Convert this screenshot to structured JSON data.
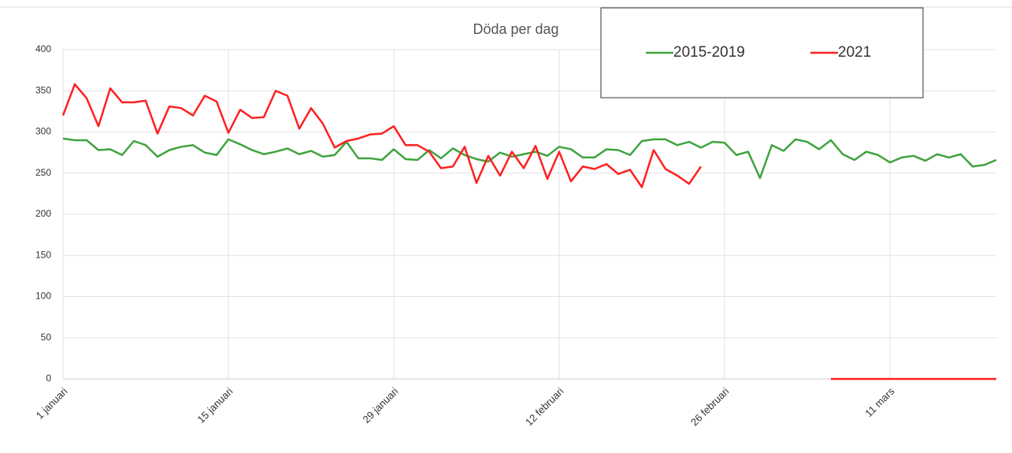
{
  "chart_data": {
    "type": "line",
    "title": "Döda per dag",
    "categories": [
      "1 januari",
      null,
      null,
      null,
      null,
      null,
      null,
      null,
      null,
      null,
      null,
      null,
      null,
      null,
      "15 januari",
      null,
      null,
      null,
      null,
      null,
      null,
      null,
      null,
      null,
      null,
      null,
      null,
      null,
      "29 januari",
      null,
      null,
      null,
      null,
      null,
      null,
      null,
      null,
      null,
      null,
      null,
      null,
      null,
      "12 februari",
      null,
      null,
      null,
      null,
      null,
      null,
      null,
      null,
      null,
      null,
      null,
      null,
      null,
      "26 februari",
      null,
      null,
      null,
      null,
      null,
      null,
      null,
      null,
      null,
      null,
      null,
      null,
      null,
      "11 mars",
      null,
      null,
      null,
      null,
      null,
      null,
      null,
      null,
      null
    ],
    "series": [
      {
        "name": "2015-2019",
        "color": "#3fa33f",
        "values": [
          292,
          290,
          290,
          278,
          279,
          272,
          289,
          284,
          270,
          278,
          282,
          284,
          275,
          272,
          291,
          285,
          278,
          273,
          276,
          280,
          273,
          277,
          270,
          272,
          288,
          268,
          268,
          266,
          279,
          267,
          266,
          278,
          268,
          280,
          272,
          267,
          264,
          275,
          270,
          273,
          276,
          271,
          282,
          279,
          269,
          269,
          279,
          278,
          272,
          289,
          291,
          291,
          284,
          288,
          281,
          288,
          287,
          272,
          276,
          244,
          284,
          277,
          291,
          288,
          279,
          290,
          273,
          266,
          276,
          272,
          263,
          269,
          271,
          265,
          273,
          269,
          273,
          258,
          260,
          266
        ]
      },
      {
        "name": "2021",
        "color": "#ff2020",
        "values": [
          320,
          358,
          341,
          307,
          353,
          336,
          336,
          338,
          298,
          331,
          329,
          320,
          344,
          337,
          299,
          327,
          317,
          318,
          350,
          344,
          304,
          329,
          310,
          281,
          289,
          292,
          297,
          298,
          307,
          284,
          284,
          276,
          256,
          258,
          282,
          238,
          271,
          247,
          276,
          256,
          283,
          243,
          276,
          240,
          258,
          255,
          261,
          249,
          254,
          233,
          278,
          255,
          247,
          237,
          258,
          null,
          null,
          null,
          null,
          null,
          null,
          null,
          null,
          null,
          null,
          0,
          0,
          0,
          0,
          0,
          0,
          0,
          0,
          0,
          0,
          0,
          0,
          0,
          0,
          0
        ]
      }
    ],
    "ylim": [
      0,
      400
    ],
    "yticks": [
      0,
      50,
      100,
      150,
      200,
      250,
      300,
      350,
      400
    ],
    "grid": true,
    "legend": "top-right"
  }
}
